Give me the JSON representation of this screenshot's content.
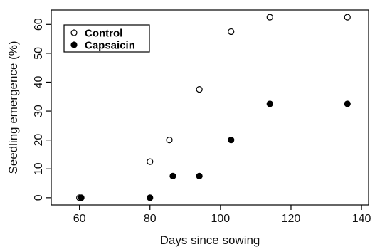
{
  "chart_data": {
    "type": "scatter",
    "xlabel": "Days since sowing",
    "ylabel": "Seedling emergence (%)",
    "xlim": [
      52,
      142
    ],
    "ylim": [
      -2.5,
      65
    ],
    "x_ticks": [
      60,
      80,
      100,
      120,
      140
    ],
    "y_ticks": [
      0,
      10,
      20,
      30,
      40,
      50,
      60
    ],
    "grid": false,
    "legend_position": "top-left",
    "series": [
      {
        "name": "Control",
        "marker": "open-circle",
        "color": "#000000",
        "points": [
          {
            "x": 60,
            "y": 0
          },
          {
            "x": 80,
            "y": 12.5
          },
          {
            "x": 85.5,
            "y": 20
          },
          {
            "x": 94,
            "y": 37.5
          },
          {
            "x": 103,
            "y": 57.5
          },
          {
            "x": 114,
            "y": 62.5
          },
          {
            "x": 136,
            "y": 62.5
          }
        ]
      },
      {
        "name": "Capsaicin",
        "marker": "filled-circle",
        "color": "#000000",
        "points": [
          {
            "x": 60.5,
            "y": 0
          },
          {
            "x": 80,
            "y": 0
          },
          {
            "x": 86.5,
            "y": 7.5
          },
          {
            "x": 94,
            "y": 7.5
          },
          {
            "x": 103,
            "y": 20
          },
          {
            "x": 114,
            "y": 32.5
          },
          {
            "x": 136,
            "y": 32.5
          }
        ]
      }
    ]
  }
}
